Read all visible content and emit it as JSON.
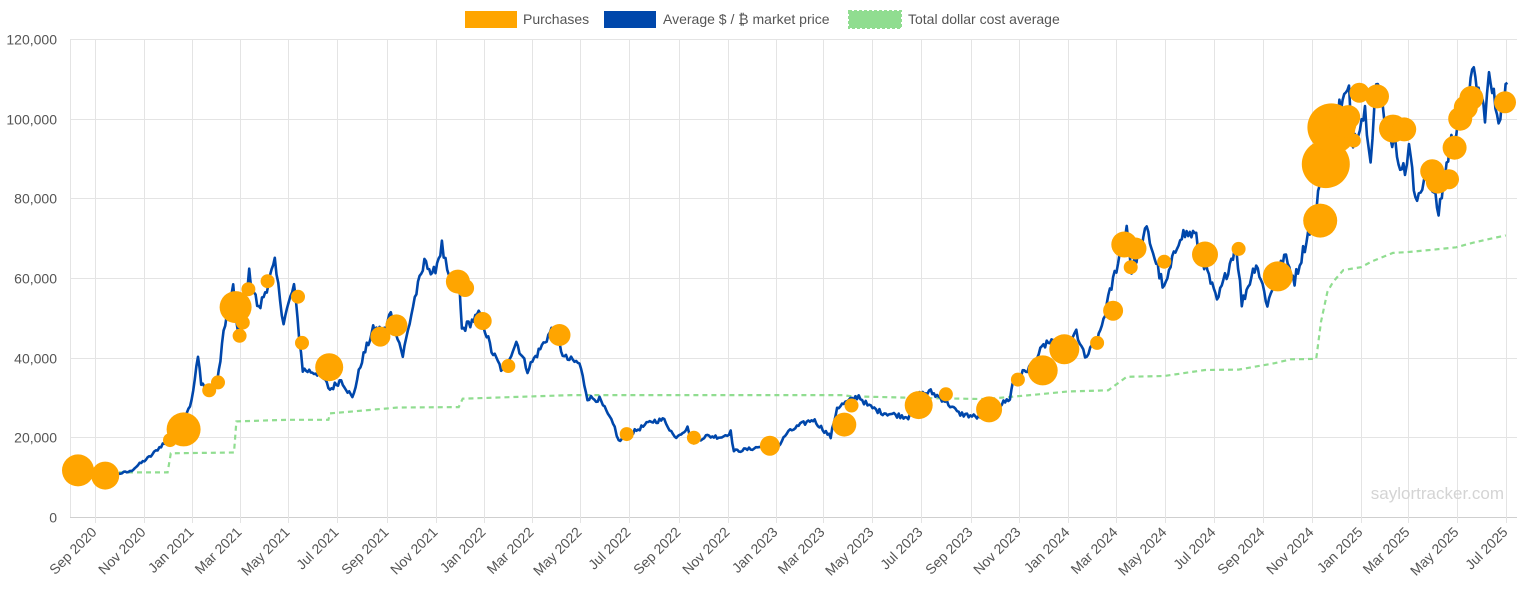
{
  "chart_data": {
    "type": "line",
    "legend_position": "top-center",
    "grid": true,
    "x_range": [
      "2020-08-01",
      "2025-07-15"
    ],
    "ylim": [
      0,
      120000
    ],
    "y_ticks": [
      0,
      20000,
      40000,
      60000,
      80000,
      100000,
      120000
    ],
    "y_tick_labels": [
      "0",
      "20,000",
      "40,000",
      "60,000",
      "80,000",
      "100,000",
      "120,000"
    ],
    "x_ticks": [
      "2020-09-01",
      "2020-11-01",
      "2021-01-01",
      "2021-03-01",
      "2021-05-01",
      "2021-07-01",
      "2021-09-01",
      "2021-11-01",
      "2022-01-01",
      "2022-03-01",
      "2022-05-01",
      "2022-07-01",
      "2022-09-01",
      "2022-11-01",
      "2023-01-01",
      "2023-03-01",
      "2023-05-01",
      "2023-07-01",
      "2023-09-01",
      "2023-11-01",
      "2024-01-01",
      "2024-03-01",
      "2024-05-01",
      "2024-07-01",
      "2024-09-01",
      "2024-11-01",
      "2025-01-01",
      "2025-03-01",
      "2025-05-01",
      "2025-07-01"
    ],
    "x_tick_labels": [
      "Sep 2020",
      "Nov 2020",
      "Jan 2021",
      "Mar 2021",
      "May 2021",
      "Jul 2021",
      "Sep 2021",
      "Nov 2021",
      "Jan 2022",
      "Mar 2022",
      "May 2022",
      "Jul 2022",
      "Sep 2022",
      "Nov 2022",
      "Jan 2023",
      "Mar 2023",
      "May 2023",
      "Jul 2023",
      "Sep 2023",
      "Nov 2023",
      "Jan 2024",
      "Mar 2024",
      "May 2024",
      "Jul 2024",
      "Sep 2024",
      "Nov 2024",
      "Jan 2025",
      "Mar 2025",
      "May 2025",
      "Jul 2025"
    ],
    "series": [
      {
        "name": "Purchases",
        "kind": "bubble",
        "color": "#FFA500",
        "points": [
          {
            "x": "2020-08-11",
            "y": 11700,
            "size": 16
          },
          {
            "x": "2020-09-14",
            "y": 10400,
            "size": 14
          },
          {
            "x": "2020-12-04",
            "y": 19300,
            "size": 7
          },
          {
            "x": "2020-12-21",
            "y": 22000,
            "size": 17
          },
          {
            "x": "2021-01-22",
            "y": 31800,
            "size": 7
          },
          {
            "x": "2021-02-02",
            "y": 33800,
            "size": 7
          },
          {
            "x": "2021-02-24",
            "y": 52700,
            "size": 16
          },
          {
            "x": "2021-03-01",
            "y": 45500,
            "size": 7
          },
          {
            "x": "2021-03-05",
            "y": 48800,
            "size": 7
          },
          {
            "x": "2021-03-12",
            "y": 57200,
            "size": 7
          },
          {
            "x": "2021-04-05",
            "y": 59200,
            "size": 7
          },
          {
            "x": "2021-05-13",
            "y": 55300,
            "size": 7
          },
          {
            "x": "2021-05-18",
            "y": 43700,
            "size": 7
          },
          {
            "x": "2021-06-21",
            "y": 37600,
            "size": 14
          },
          {
            "x": "2021-08-24",
            "y": 45300,
            "size": 10
          },
          {
            "x": "2021-09-13",
            "y": 48100,
            "size": 11
          },
          {
            "x": "2021-11-29",
            "y": 59100,
            "size": 12
          },
          {
            "x": "2021-12-08",
            "y": 57500,
            "size": 9
          },
          {
            "x": "2021-12-30",
            "y": 49200,
            "size": 9
          },
          {
            "x": "2022-01-31",
            "y": 37900,
            "size": 7
          },
          {
            "x": "2022-04-05",
            "y": 45700,
            "size": 11
          },
          {
            "x": "2022-06-28",
            "y": 20800,
            "size": 7
          },
          {
            "x": "2022-09-20",
            "y": 19900,
            "size": 7
          },
          {
            "x": "2022-12-24",
            "y": 17900,
            "size": 10
          },
          {
            "x": "2023-03-27",
            "y": 23200,
            "size": 12
          },
          {
            "x": "2023-04-05",
            "y": 28000,
            "size": 7
          },
          {
            "x": "2023-06-28",
            "y": 28100,
            "size": 14
          },
          {
            "x": "2023-08-01",
            "y": 30800,
            "size": 7
          },
          {
            "x": "2023-09-24",
            "y": 27000,
            "size": 13
          },
          {
            "x": "2023-10-30",
            "y": 34500,
            "size": 7
          },
          {
            "x": "2023-11-30",
            "y": 36800,
            "size": 15
          },
          {
            "x": "2023-12-27",
            "y": 42100,
            "size": 15
          },
          {
            "x": "2024-02-06",
            "y": 43700,
            "size": 7
          },
          {
            "x": "2024-02-26",
            "y": 51800,
            "size": 10
          },
          {
            "x": "2024-03-11",
            "y": 68400,
            "size": 13
          },
          {
            "x": "2024-03-19",
            "y": 62700,
            "size": 7
          },
          {
            "x": "2024-03-25",
            "y": 67400,
            "size": 11
          },
          {
            "x": "2024-04-30",
            "y": 64100,
            "size": 7
          },
          {
            "x": "2024-06-20",
            "y": 65900,
            "size": 13
          },
          {
            "x": "2024-08-01",
            "y": 67300,
            "size": 7
          },
          {
            "x": "2024-09-19",
            "y": 60400,
            "size": 15
          },
          {
            "x": "2024-11-11",
            "y": 74400,
            "size": 17
          },
          {
            "x": "2024-11-18",
            "y": 88600,
            "size": 24
          },
          {
            "x": "2024-11-25",
            "y": 97800,
            "size": 24
          },
          {
            "x": "2024-12-02",
            "y": 95800,
            "size": 17
          },
          {
            "x": "2024-12-09",
            "y": 98800,
            "size": 14
          },
          {
            "x": "2024-12-16",
            "y": 100400,
            "size": 12
          },
          {
            "x": "2024-12-23",
            "y": 94500,
            "size": 7
          },
          {
            "x": "2024-12-30",
            "y": 106500,
            "size": 10
          },
          {
            "x": "2025-01-21",
            "y": 105600,
            "size": 12
          },
          {
            "x": "2025-02-10",
            "y": 97500,
            "size": 14
          },
          {
            "x": "2025-02-24",
            "y": 97300,
            "size": 12
          },
          {
            "x": "2025-03-31",
            "y": 86800,
            "size": 12
          },
          {
            "x": "2025-04-07",
            "y": 84200,
            "size": 12
          },
          {
            "x": "2025-04-21",
            "y": 84800,
            "size": 10
          },
          {
            "x": "2025-04-28",
            "y": 92700,
            "size": 12
          },
          {
            "x": "2025-05-05",
            "y": 100000,
            "size": 12
          },
          {
            "x": "2025-05-12",
            "y": 102800,
            "size": 12
          },
          {
            "x": "2025-05-19",
            "y": 105200,
            "size": 12
          },
          {
            "x": "2025-06-30",
            "y": 104100,
            "size": 11
          }
        ]
      },
      {
        "name": "Average $ / ₿ market price",
        "kind": "line",
        "color": "#0047AB",
        "points": [
          [
            "2020-08-15",
            11800
          ],
          [
            "2020-09-05",
            10300
          ],
          [
            "2020-09-25",
            10700
          ],
          [
            "2020-10-15",
            11400
          ],
          [
            "2020-10-25",
            13000
          ],
          [
            "2020-11-10",
            15300
          ],
          [
            "2020-11-25",
            18300
          ],
          [
            "2020-12-05",
            19200
          ],
          [
            "2020-12-17",
            23000
          ],
          [
            "2020-12-31",
            29000
          ],
          [
            "2021-01-08",
            40000
          ],
          [
            "2021-01-12",
            34000
          ],
          [
            "2021-01-22",
            31000
          ],
          [
            "2021-02-01",
            33500
          ],
          [
            "2021-02-09",
            46500
          ],
          [
            "2021-02-21",
            57000
          ],
          [
            "2021-02-28",
            45000
          ],
          [
            "2021-03-13",
            61000
          ],
          [
            "2021-03-25",
            52000
          ],
          [
            "2021-04-14",
            63500
          ],
          [
            "2021-04-25",
            49000
          ],
          [
            "2021-05-08",
            58000
          ],
          [
            "2021-05-19",
            37000
          ],
          [
            "2021-06-10",
            36000
          ],
          [
            "2021-06-22",
            32000
          ],
          [
            "2021-07-06",
            34500
          ],
          [
            "2021-07-20",
            29800
          ],
          [
            "2021-08-01",
            39500
          ],
          [
            "2021-08-15",
            47000
          ],
          [
            "2021-08-31",
            47000
          ],
          [
            "2021-09-06",
            52000
          ],
          [
            "2021-09-21",
            40500
          ],
          [
            "2021-10-06",
            55000
          ],
          [
            "2021-10-20",
            65000
          ],
          [
            "2021-10-28",
            60000
          ],
          [
            "2021-11-09",
            68000
          ],
          [
            "2021-11-20",
            57000
          ],
          [
            "2021-12-01",
            57000
          ],
          [
            "2021-12-04",
            47000
          ],
          [
            "2021-12-27",
            51000
          ],
          [
            "2022-01-10",
            41800
          ],
          [
            "2022-01-24",
            36500
          ],
          [
            "2022-02-10",
            44000
          ],
          [
            "2022-02-24",
            37000
          ],
          [
            "2022-03-28",
            47500
          ],
          [
            "2022-04-11",
            40000
          ],
          [
            "2022-04-30",
            38500
          ],
          [
            "2022-05-10",
            30000
          ],
          [
            "2022-05-25",
            29500
          ],
          [
            "2022-06-13",
            22500
          ],
          [
            "2022-06-18",
            19000
          ],
          [
            "2022-07-08",
            21500
          ],
          [
            "2022-07-29",
            24000
          ],
          [
            "2022-08-14",
            24400
          ],
          [
            "2022-08-27",
            20000
          ],
          [
            "2022-09-12",
            22300
          ],
          [
            "2022-09-20",
            18900
          ],
          [
            "2022-10-05",
            20300
          ],
          [
            "2022-10-25",
            20100
          ],
          [
            "2022-11-05",
            21300
          ],
          [
            "2022-11-09",
            16500
          ],
          [
            "2022-11-30",
            17100
          ],
          [
            "2022-12-15",
            17800
          ],
          [
            "2022-12-31",
            16500
          ],
          [
            "2023-01-14",
            21000
          ],
          [
            "2023-01-31",
            23100
          ],
          [
            "2023-02-16",
            24500
          ],
          [
            "2023-03-10",
            20100
          ],
          [
            "2023-03-18",
            27500
          ],
          [
            "2023-04-14",
            30400
          ],
          [
            "2023-04-25",
            28000
          ],
          [
            "2023-05-12",
            26300
          ],
          [
            "2023-06-15",
            25100
          ],
          [
            "2023-06-23",
            30500
          ],
          [
            "2023-07-13",
            31400
          ],
          [
            "2023-07-31",
            29200
          ],
          [
            "2023-08-17",
            26000
          ],
          [
            "2023-09-11",
            25000
          ],
          [
            "2023-09-30",
            27000
          ],
          [
            "2023-10-20",
            29800
          ],
          [
            "2023-10-24",
            34000
          ],
          [
            "2023-11-15",
            37800
          ],
          [
            "2023-12-05",
            43900
          ],
          [
            "2023-12-31",
            42300
          ],
          [
            "2024-01-11",
            46500
          ],
          [
            "2024-01-22",
            39800
          ],
          [
            "2024-02-08",
            45000
          ],
          [
            "2024-02-28",
            61000
          ],
          [
            "2024-03-14",
            73000
          ],
          [
            "2024-03-20",
            62000
          ],
          [
            "2024-04-08",
            72000
          ],
          [
            "2024-04-30",
            57000
          ],
          [
            "2024-05-20",
            71000
          ],
          [
            "2024-06-07",
            71000
          ],
          [
            "2024-07-05",
            54000
          ],
          [
            "2024-07-29",
            68500
          ],
          [
            "2024-08-05",
            53500
          ],
          [
            "2024-08-23",
            64000
          ],
          [
            "2024-09-06",
            53500
          ],
          [
            "2024-09-27",
            65500
          ],
          [
            "2024-10-10",
            59500
          ],
          [
            "2024-10-29",
            72500
          ],
          [
            "2024-11-06",
            75500
          ],
          [
            "2024-11-13",
            90000
          ],
          [
            "2024-11-22",
            99000
          ],
          [
            "2024-11-26",
            92000
          ],
          [
            "2024-12-05",
            103000
          ],
          [
            "2024-12-17",
            107000
          ],
          [
            "2024-12-20",
            94000
          ],
          [
            "2025-01-06",
            102000
          ],
          [
            "2025-01-13",
            91000
          ],
          [
            "2025-01-20",
            109000
          ],
          [
            "2025-02-03",
            98000
          ],
          [
            "2025-02-25",
            86000
          ],
          [
            "2025-03-02",
            94000
          ],
          [
            "2025-03-10",
            78500
          ],
          [
            "2025-03-25",
            87500
          ],
          [
            "2025-04-08",
            76500
          ],
          [
            "2025-04-22",
            93000
          ],
          [
            "2025-05-08",
            103000
          ],
          [
            "2025-05-22",
            111000
          ],
          [
            "2025-06-05",
            101500
          ],
          [
            "2025-06-10",
            110000
          ],
          [
            "2025-06-22",
            100500
          ],
          [
            "2025-07-03",
            109000
          ]
        ]
      },
      {
        "name": "Total dollar cost average",
        "kind": "dashed-line",
        "color": "#90DD90",
        "points": [
          [
            "2020-09-20",
            11200
          ],
          [
            "2020-12-01",
            11200
          ],
          [
            "2020-12-05",
            16000
          ],
          [
            "2021-02-22",
            16200
          ],
          [
            "2021-02-25",
            24000
          ],
          [
            "2021-04-30",
            24400
          ],
          [
            "2021-06-20",
            24400
          ],
          [
            "2021-06-22",
            26000
          ],
          [
            "2021-09-15",
            27500
          ],
          [
            "2021-11-30",
            27600
          ],
          [
            "2021-12-05",
            29700
          ],
          [
            "2022-04-20",
            30600
          ],
          [
            "2022-06-30",
            30600
          ],
          [
            "2023-03-25",
            30600
          ],
          [
            "2023-04-05",
            30300
          ],
          [
            "2023-06-25",
            29900
          ],
          [
            "2023-09-20",
            29600
          ],
          [
            "2023-11-20",
            30700
          ],
          [
            "2023-12-31",
            31500
          ],
          [
            "2024-02-20",
            31800
          ],
          [
            "2024-03-14",
            35200
          ],
          [
            "2024-04-30",
            35400
          ],
          [
            "2024-06-20",
            36900
          ],
          [
            "2024-08-01",
            37000
          ],
          [
            "2024-09-15",
            38600
          ],
          [
            "2024-10-05",
            39600
          ],
          [
            "2024-11-06",
            39700
          ],
          [
            "2024-11-12",
            49000
          ],
          [
            "2024-11-20",
            56500
          ],
          [
            "2024-11-27",
            59000
          ],
          [
            "2024-12-10",
            62000
          ],
          [
            "2025-01-01",
            62700
          ],
          [
            "2025-01-15",
            64200
          ],
          [
            "2025-02-10",
            66300
          ],
          [
            "2025-02-28",
            66500
          ],
          [
            "2025-04-01",
            67100
          ],
          [
            "2025-04-30",
            67700
          ],
          [
            "2025-05-20",
            68800
          ],
          [
            "2025-06-15",
            70000
          ],
          [
            "2025-07-01",
            70700
          ]
        ]
      }
    ]
  },
  "watermark": "saylortracker.com"
}
